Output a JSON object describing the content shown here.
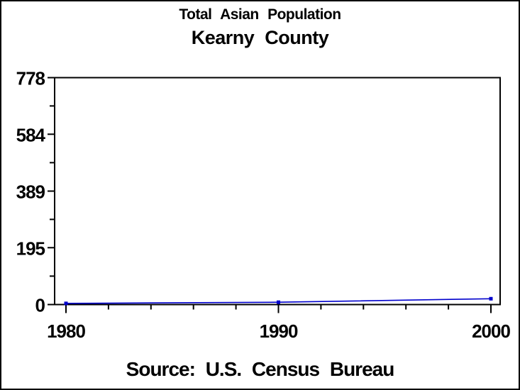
{
  "figure": {
    "background_color": "#ffffff",
    "border_color": "#000000"
  },
  "chart_data": {
    "type": "line",
    "title": "Total Asian Population",
    "subtitle": "Kearny County",
    "source_note": "Source: U.S. Census Bureau",
    "x": [
      1980,
      1990,
      2000
    ],
    "x_tick_labels": [
      "1980",
      "1990",
      "2000"
    ],
    "x_minor_tick_years": [
      1982,
      1984,
      1986,
      1988,
      1992,
      1994,
      1996,
      1998
    ],
    "series": [
      {
        "name": "Total Asian Population",
        "values": [
          4,
          8,
          20
        ]
      }
    ],
    "y_ticks": [
      0,
      195,
      389,
      584,
      778
    ],
    "y_tick_labels": [
      "0",
      "195",
      "389",
      "584",
      "778"
    ],
    "y_minor_ticks": [
      97.5,
      292,
      486.5,
      681
    ],
    "ylim": [
      0,
      778
    ],
    "xlim": [
      1980,
      2000
    ],
    "grid": "off",
    "legend": "none",
    "line_color": "#0000cc",
    "marker": "square",
    "marker_size": 5,
    "axis_color": "#000000",
    "text_color": "#000000"
  }
}
